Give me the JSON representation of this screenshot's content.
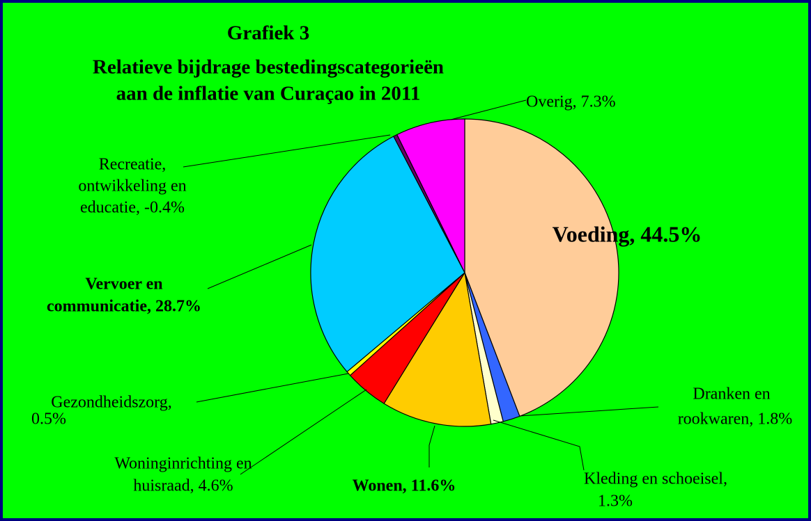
{
  "chart_data": {
    "type": "pie",
    "title": [
      "Grafiek 3",
      "Relatieve bijdrage bestedingscategorieën",
      "aan de inflatie van Curaçao in 2011"
    ],
    "values": [
      44.5,
      1.8,
      1.3,
      11.6,
      4.6,
      0.5,
      28.7,
      -0.4,
      7.3
    ],
    "value_labels": [
      [
        "Voeding, 44.5%"
      ],
      [
        "Dranken en",
        "rookwaren, 1.8%"
      ],
      [
        "Kleding en schoeisel,",
        "1.3%"
      ],
      [
        "Wonen, 11.6%"
      ],
      [
        "Woninginrichting en",
        "huisraad, 4.6%"
      ],
      [
        "Gezondheidszorg,",
        "0.5%"
      ],
      [
        "Vervoer en",
        "communicatie, 28.7%"
      ],
      [
        "Recreatie,",
        "ontwikkeling en",
        "educatie, -0.4%"
      ],
      [
        "Overig, 7.3%"
      ]
    ],
    "colors": [
      "#ffcc99",
      "#3366ff",
      "#ffffcc",
      "#ffcc00",
      "#ff0000",
      "#ffff00",
      "#00ccff",
      "#660066",
      "#ff00ff"
    ],
    "bold": [
      true,
      false,
      false,
      true,
      false,
      false,
      true,
      false,
      false
    ]
  }
}
